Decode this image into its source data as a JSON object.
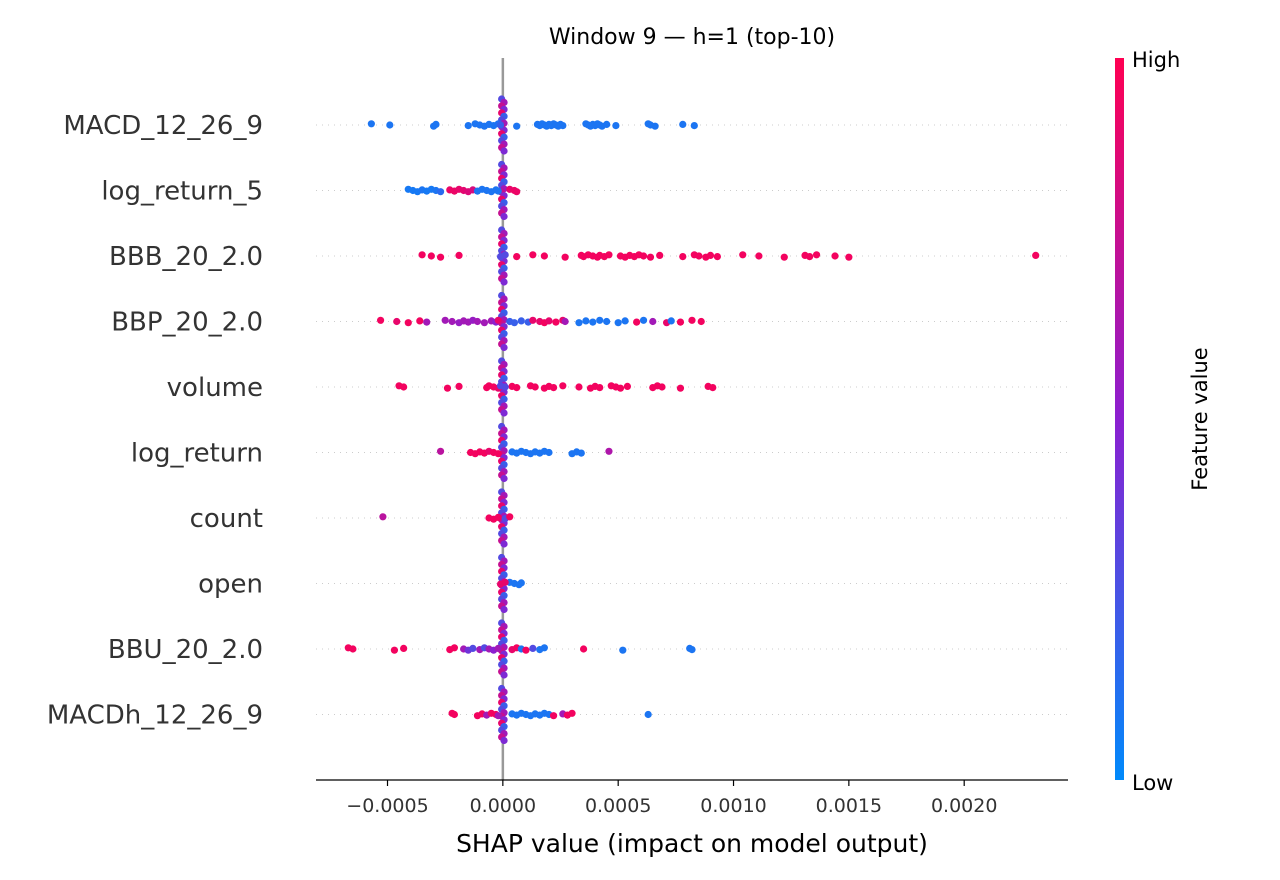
{
  "chart_data": {
    "type": "scatter",
    "subtype": "beeswarm",
    "title": "Window 9 — h=1 (top-10)",
    "xlabel": "SHAP value (impact on model output)",
    "xlim": [
      -0.00081,
      0.00245
    ],
    "xticks": [
      {
        "value": -0.0005,
        "label": "−0.0005"
      },
      {
        "value": 0.0,
        "label": "0.0000"
      },
      {
        "value": 0.0005,
        "label": "0.0005"
      },
      {
        "value": 0.001,
        "label": "0.0010"
      },
      {
        "value": 0.0015,
        "label": "0.0015"
      },
      {
        "value": 0.002,
        "label": "0.0020"
      }
    ],
    "colorbar": {
      "label": "Feature value",
      "high": "High",
      "low": "Low",
      "high_color": "#ff0052",
      "low_color": "#008afb"
    },
    "zero_line_color": "#999999",
    "features": [
      {
        "name": "MACD_12_26_9",
        "points": [
          [
            -0.00057,
            0.1
          ],
          [
            -0.00049,
            0.1
          ],
          [
            -0.0003,
            0.1
          ],
          [
            -0.00029,
            0.1
          ],
          [
            -0.00015,
            0.1
          ],
          [
            -0.00012,
            0.1
          ],
          [
            -0.0001,
            0.1
          ],
          [
            -8e-05,
            0.1
          ],
          [
            -6e-05,
            0.1
          ],
          [
            -4e-05,
            0.1
          ],
          [
            -2e-05,
            0.12
          ],
          [
            -1e-05,
            0.2
          ],
          [
            6e-05,
            0.1
          ],
          [
            0.00015,
            0.1
          ],
          [
            0.00016,
            0.1
          ],
          [
            0.00017,
            0.1
          ],
          [
            0.00018,
            0.1
          ],
          [
            0.00019,
            0.1
          ],
          [
            0.0002,
            0.1
          ],
          [
            0.00021,
            0.1
          ],
          [
            0.00022,
            0.1
          ],
          [
            0.00023,
            0.1
          ],
          [
            0.00024,
            0.1
          ],
          [
            0.00025,
            0.1
          ],
          [
            0.00026,
            0.1
          ],
          [
            0.00036,
            0.1
          ],
          [
            0.00037,
            0.1
          ],
          [
            0.00038,
            0.1
          ],
          [
            0.00039,
            0.1
          ],
          [
            0.0004,
            0.1
          ],
          [
            0.00041,
            0.1
          ],
          [
            0.00042,
            0.1
          ],
          [
            0.00043,
            0.1
          ],
          [
            0.00045,
            0.1
          ],
          [
            0.00049,
            0.1
          ],
          [
            0.00063,
            0.1
          ],
          [
            0.00064,
            0.1
          ],
          [
            0.00066,
            0.1
          ],
          [
            0.00078,
            0.1
          ],
          [
            0.00083,
            0.1
          ]
        ]
      },
      {
        "name": "log_return_5",
        "points": [
          [
            -0.00041,
            0.08
          ],
          [
            -0.00039,
            0.08
          ],
          [
            -0.00037,
            0.08
          ],
          [
            -0.00035,
            0.1
          ],
          [
            -0.00033,
            0.08
          ],
          [
            -0.00031,
            0.08
          ],
          [
            -0.00029,
            0.1
          ],
          [
            -0.00027,
            0.15
          ],
          [
            -0.00023,
            0.92
          ],
          [
            -0.00021,
            0.92
          ],
          [
            -0.00019,
            0.9
          ],
          [
            -0.00017,
            0.88
          ],
          [
            -0.00015,
            0.85
          ],
          [
            -0.00013,
            0.82
          ],
          [
            -0.00011,
            0.1
          ],
          [
            -9e-05,
            0.1
          ],
          [
            -7e-05,
            0.1
          ],
          [
            -5e-05,
            0.1
          ],
          [
            -3e-05,
            0.1
          ],
          [
            -2e-05,
            0.1
          ],
          [
            3e-05,
            0.9
          ],
          [
            5e-05,
            0.92
          ],
          [
            6e-05,
            0.92
          ]
        ]
      },
      {
        "name": "BBB_20_2.0",
        "points": [
          [
            -0.00035,
            0.95
          ],
          [
            -0.00031,
            0.95
          ],
          [
            -0.00027,
            0.95
          ],
          [
            -0.00019,
            0.95
          ],
          [
            6e-05,
            0.95
          ],
          [
            0.00013,
            0.95
          ],
          [
            0.00018,
            0.95
          ],
          [
            0.00027,
            0.95
          ],
          [
            0.00034,
            0.95
          ],
          [
            0.00035,
            0.95
          ],
          [
            0.00037,
            0.95
          ],
          [
            0.00039,
            0.95
          ],
          [
            0.00041,
            0.95
          ],
          [
            0.00042,
            0.95
          ],
          [
            0.00044,
            0.95
          ],
          [
            0.00046,
            0.95
          ],
          [
            0.00051,
            0.95
          ],
          [
            0.00053,
            0.95
          ],
          [
            0.00055,
            0.95
          ],
          [
            0.00057,
            0.95
          ],
          [
            0.00059,
            0.95
          ],
          [
            0.00061,
            0.95
          ],
          [
            0.00064,
            0.95
          ],
          [
            0.00068,
            0.95
          ],
          [
            0.00078,
            0.95
          ],
          [
            0.00083,
            0.95
          ],
          [
            0.00085,
            0.95
          ],
          [
            0.00088,
            0.95
          ],
          [
            0.0009,
            0.95
          ],
          [
            0.00093,
            0.95
          ],
          [
            0.00104,
            0.95
          ],
          [
            0.00111,
            0.95
          ],
          [
            0.00122,
            0.95
          ],
          [
            0.00131,
            0.95
          ],
          [
            0.00133,
            0.95
          ],
          [
            0.00136,
            0.95
          ],
          [
            0.00144,
            0.95
          ],
          [
            0.0015,
            0.95
          ],
          [
            0.00231,
            0.95
          ],
          [
            -1e-05,
            0.3
          ],
          [
            1e-05,
            0.3
          ]
        ]
      },
      {
        "name": "BBP_20_2.0",
        "points": [
          [
            -0.00053,
            0.95
          ],
          [
            -0.00046,
            0.9
          ],
          [
            -0.00041,
            0.95
          ],
          [
            -0.00036,
            0.95
          ],
          [
            -0.00033,
            0.6
          ],
          [
            -0.00025,
            0.6
          ],
          [
            -0.00022,
            0.6
          ],
          [
            -0.00019,
            0.55
          ],
          [
            -0.00017,
            0.6
          ],
          [
            -0.00015,
            0.6
          ],
          [
            -0.00013,
            0.55
          ],
          [
            -0.00011,
            0.6
          ],
          [
            -8e-05,
            0.6
          ],
          [
            -5e-05,
            0.6
          ],
          [
            -3e-05,
            0.5
          ],
          [
            -2e-05,
            0.9
          ],
          [
            3e-05,
            0.2
          ],
          [
            5e-05,
            0.2
          ],
          [
            8e-05,
            0.2
          ],
          [
            0.00011,
            0.2
          ],
          [
            0.00013,
            0.9
          ],
          [
            0.00016,
            0.9
          ],
          [
            0.00018,
            0.95
          ],
          [
            0.0002,
            0.9
          ],
          [
            0.00023,
            0.95
          ],
          [
            0.00026,
            0.9
          ],
          [
            0.00027,
            0.6
          ],
          [
            0.00033,
            0.1
          ],
          [
            0.00036,
            0.1
          ],
          [
            0.00039,
            0.1
          ],
          [
            0.00042,
            0.1
          ],
          [
            0.00045,
            0.1
          ],
          [
            0.0005,
            0.1
          ],
          [
            0.00053,
            0.1
          ],
          [
            0.00058,
            0.95
          ],
          [
            0.00061,
            0.1
          ],
          [
            0.00065,
            0.6
          ],
          [
            0.00071,
            0.9
          ],
          [
            0.00073,
            0.1
          ],
          [
            0.00077,
            0.95
          ],
          [
            0.00082,
            0.95
          ],
          [
            0.00086,
            0.95
          ]
        ]
      },
      {
        "name": "volume",
        "points": [
          [
            -0.00045,
            0.95
          ],
          [
            -0.00043,
            0.95
          ],
          [
            -0.00024,
            0.95
          ],
          [
            -0.00019,
            0.95
          ],
          [
            -7e-05,
            0.95
          ],
          [
            -6e-05,
            0.95
          ],
          [
            -4e-05,
            0.95
          ],
          [
            -2e-05,
            0.9
          ],
          [
            4e-05,
            0.95
          ],
          [
            6e-05,
            0.95
          ],
          [
            0.00012,
            0.95
          ],
          [
            0.00014,
            0.95
          ],
          [
            0.00018,
            0.95
          ],
          [
            0.0002,
            0.95
          ],
          [
            0.00022,
            0.95
          ],
          [
            0.00026,
            0.95
          ],
          [
            0.00033,
            0.95
          ],
          [
            0.00038,
            0.95
          ],
          [
            0.0004,
            0.95
          ],
          [
            0.00042,
            0.95
          ],
          [
            0.00047,
            0.95
          ],
          [
            0.00049,
            0.95
          ],
          [
            0.00051,
            0.95
          ],
          [
            0.00054,
            0.95
          ],
          [
            0.00065,
            0.95
          ],
          [
            0.00067,
            0.95
          ],
          [
            0.00069,
            0.95
          ],
          [
            0.00077,
            0.95
          ],
          [
            0.00089,
            0.95
          ],
          [
            0.00091,
            0.95
          ],
          [
            -1e-05,
            0.3
          ],
          [
            1e-05,
            0.3
          ]
        ]
      },
      {
        "name": "log_return",
        "points": [
          [
            -0.00027,
            0.7
          ],
          [
            -0.00014,
            0.95
          ],
          [
            -0.00012,
            0.95
          ],
          [
            -0.0001,
            0.95
          ],
          [
            -8e-05,
            0.95
          ],
          [
            -6e-05,
            0.9
          ],
          [
            -4e-05,
            0.95
          ],
          [
            -2e-05,
            0.95
          ],
          [
            4e-05,
            0.1
          ],
          [
            6e-05,
            0.1
          ],
          [
            8e-05,
            0.1
          ],
          [
            0.0001,
            0.1
          ],
          [
            0.00012,
            0.1
          ],
          [
            0.00014,
            0.1
          ],
          [
            0.00016,
            0.1
          ],
          [
            0.00018,
            0.1
          ],
          [
            0.0002,
            0.1
          ],
          [
            0.0003,
            0.1
          ],
          [
            0.00032,
            0.1
          ],
          [
            0.00034,
            0.1
          ],
          [
            0.00046,
            0.65
          ]
        ]
      },
      {
        "name": "count",
        "points": [
          [
            -0.00052,
            0.7
          ],
          [
            -6e-05,
            0.95
          ],
          [
            -4e-05,
            0.95
          ],
          [
            -2e-05,
            0.95
          ],
          [
            1e-05,
            0.3
          ],
          [
            3e-05,
            0.95
          ]
        ]
      },
      {
        "name": "open",
        "points": [
          [
            3e-05,
            0.1
          ],
          [
            5e-05,
            0.1
          ],
          [
            7e-05,
            0.1
          ],
          [
            8e-05,
            0.1
          ],
          [
            -1e-05,
            0.9
          ],
          [
            1e-05,
            0.9
          ]
        ]
      },
      {
        "name": "BBU_20_2.0",
        "points": [
          [
            -0.00067,
            0.95
          ],
          [
            -0.00065,
            0.95
          ],
          [
            -0.00047,
            0.95
          ],
          [
            -0.00043,
            0.95
          ],
          [
            -0.00023,
            0.95
          ],
          [
            -0.00021,
            0.95
          ],
          [
            -0.00017,
            0.6
          ],
          [
            -0.00015,
            0.4
          ],
          [
            -0.00013,
            0.3
          ],
          [
            -0.0001,
            0.6
          ],
          [
            -8e-05,
            0.3
          ],
          [
            -6e-05,
            0.6
          ],
          [
            -4e-05,
            0.5
          ],
          [
            -2e-05,
            0.6
          ],
          [
            4e-05,
            0.9
          ],
          [
            6e-05,
            0.95
          ],
          [
            8e-05,
            0.1
          ],
          [
            0.0001,
            0.95
          ],
          [
            0.00013,
            0.3
          ],
          [
            0.00016,
            0.1
          ],
          [
            0.00018,
            0.1
          ],
          [
            0.00035,
            0.95
          ],
          [
            0.00052,
            0.1
          ],
          [
            0.00081,
            0.1
          ],
          [
            0.00082,
            0.1
          ]
        ]
      },
      {
        "name": "MACDh_12_26_9",
        "points": [
          [
            -0.00022,
            0.95
          ],
          [
            -0.00021,
            0.95
          ],
          [
            -0.00011,
            0.95
          ],
          [
            -9e-05,
            0.95
          ],
          [
            -7e-05,
            0.6
          ],
          [
            -5e-05,
            0.95
          ],
          [
            -3e-05,
            0.95
          ],
          [
            -2e-05,
            0.6
          ],
          [
            4e-05,
            0.1
          ],
          [
            6e-05,
            0.1
          ],
          [
            8e-05,
            0.1
          ],
          [
            0.0001,
            0.1
          ],
          [
            0.00012,
            0.1
          ],
          [
            0.00014,
            0.1
          ],
          [
            0.00016,
            0.1
          ],
          [
            0.00018,
            0.1
          ],
          [
            0.0002,
            0.1
          ],
          [
            0.00022,
            0.95
          ],
          [
            0.00026,
            0.6
          ],
          [
            0.00028,
            0.95
          ],
          [
            0.0003,
            0.95
          ],
          [
            0.00063,
            0.1
          ]
        ]
      }
    ]
  }
}
